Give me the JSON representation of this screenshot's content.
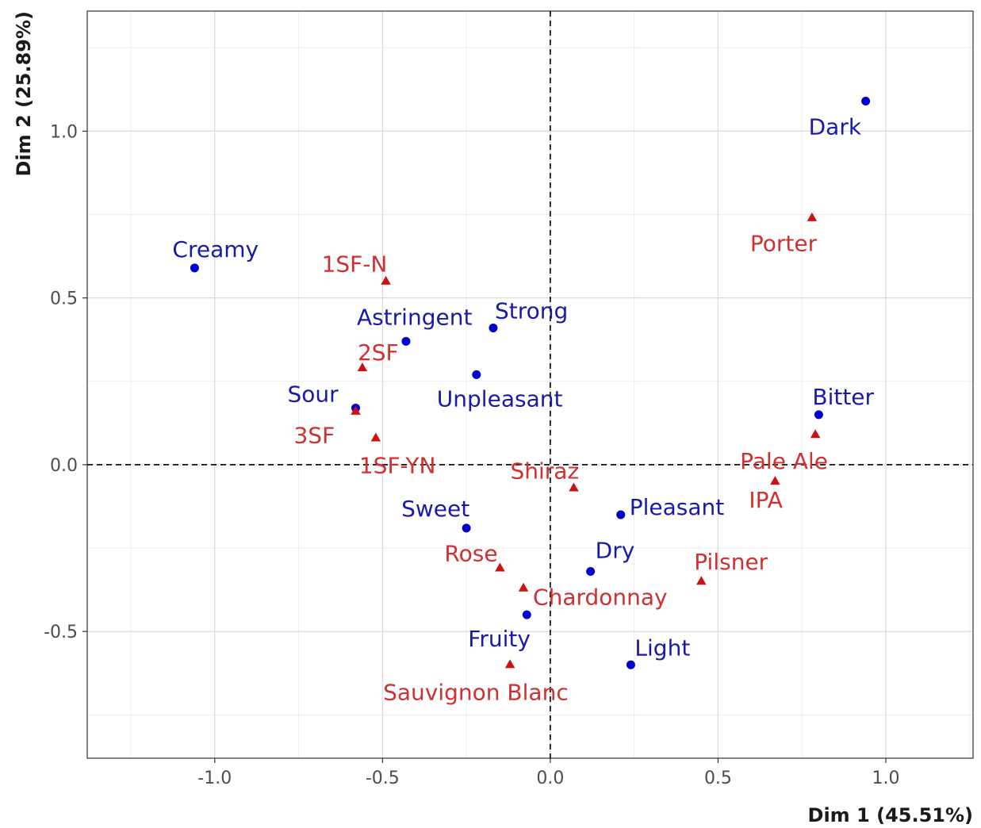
{
  "chart_data": {
    "type": "scatter",
    "xlabel": "Dim 1 (45.51%)",
    "ylabel": "Dim 2 (25.89%)",
    "xlim": [
      -1.38,
      1.26
    ],
    "ylim": [
      -0.88,
      1.36
    ],
    "x_ticks": [
      -1.0,
      -0.5,
      0.0,
      0.5,
      1.0
    ],
    "x_tick_labels": [
      "-1.0",
      "-0.5",
      "0.0",
      "0.5",
      "1.0"
    ],
    "y_ticks": [
      -0.5,
      0.0,
      0.5,
      1.0
    ],
    "y_tick_labels": [
      "-0.5",
      "0.0",
      "0.5",
      "1.0"
    ],
    "grid": true,
    "reference_lines": {
      "x": 0,
      "y": 0,
      "style": "dashed"
    },
    "series": [
      {
        "marker": "circle",
        "color": "#0000cc",
        "label_color": "#1a1aaa",
        "points": [
          {
            "label": "Dark",
            "x": 0.94,
            "y": 1.09
          },
          {
            "label": "Creamy",
            "x": -1.06,
            "y": 0.59
          },
          {
            "label": "Strong",
            "x": -0.17,
            "y": 0.41
          },
          {
            "label": "Astringent",
            "x": -0.43,
            "y": 0.37
          },
          {
            "label": "Unpleasant",
            "x": -0.22,
            "y": 0.27
          },
          {
            "label": "Sour",
            "x": -0.58,
            "y": 0.17
          },
          {
            "label": "Bitter",
            "x": 0.8,
            "y": 0.15
          },
          {
            "label": "Pleasant",
            "x": 0.21,
            "y": -0.15
          },
          {
            "label": "Sweet",
            "x": -0.25,
            "y": -0.19
          },
          {
            "label": "Dry",
            "x": 0.12,
            "y": -0.32
          },
          {
            "label": "Fruity",
            "x": -0.07,
            "y": -0.45
          },
          {
            "label": "Light",
            "x": 0.24,
            "y": -0.6
          }
        ]
      },
      {
        "marker": "triangle",
        "color": "#cc1111",
        "label_color": "#d03030",
        "points": [
          {
            "label": "Porter",
            "x": 0.78,
            "y": 0.74
          },
          {
            "label": "1SF-N",
            "x": -0.49,
            "y": 0.55
          },
          {
            "label": "2SF",
            "x": -0.56,
            "y": 0.29
          },
          {
            "label": "3SF",
            "x": -0.58,
            "y": 0.16
          },
          {
            "label": "1SF-YN",
            "x": -0.52,
            "y": 0.08
          },
          {
            "label": "Pale Ale",
            "x": 0.79,
            "y": 0.09
          },
          {
            "label": "IPA",
            "x": 0.67,
            "y": -0.05
          },
          {
            "label": "Shiraz",
            "x": 0.07,
            "y": -0.07
          },
          {
            "label": "Rose",
            "x": -0.15,
            "y": -0.31
          },
          {
            "label": "Pilsner",
            "x": 0.45,
            "y": -0.35
          },
          {
            "label": "Chardonnay",
            "x": -0.08,
            "y": -0.37
          },
          {
            "label": "Sauvignon Blanc",
            "x": -0.12,
            "y": -0.6
          }
        ]
      }
    ]
  }
}
